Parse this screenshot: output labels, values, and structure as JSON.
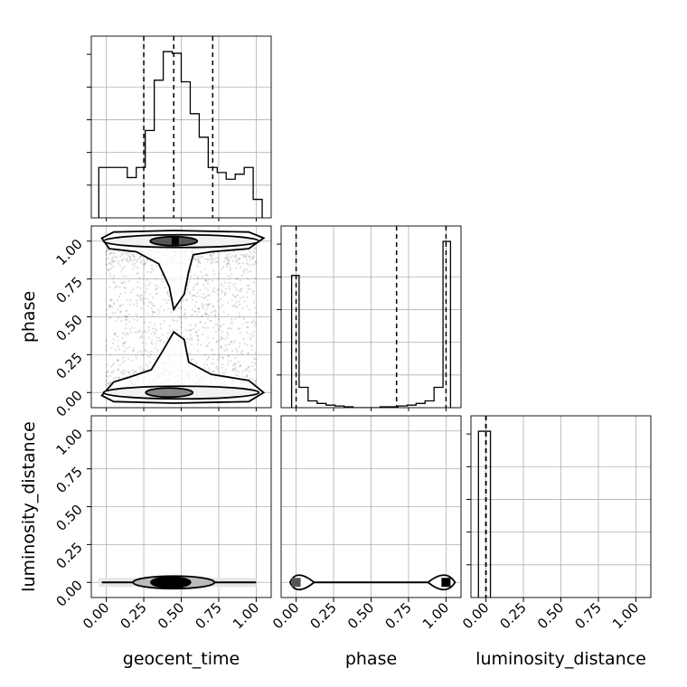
{
  "chart_data": {
    "type": "corner",
    "parameters": [
      "geocent_time",
      "phase",
      "luminosity_distance"
    ],
    "axis_labels": {
      "geocent_time": "geocent_time",
      "phase": "phase",
      "luminosity_distance": "luminosity_distance"
    },
    "ticks": {
      "geocent_time": [
        "0.00",
        "0.25",
        "0.50",
        "0.75",
        "1.00"
      ],
      "phase": [
        "0.00",
        "0.25",
        "0.50",
        "0.75",
        "1.00"
      ],
      "luminosity_distance": [
        "0.00",
        "0.25",
        "0.50",
        "0.75",
        "1.00"
      ]
    },
    "tick_values": [
      0,
      0.25,
      0.5,
      0.75,
      1.0
    ],
    "xlim": [
      -0.1,
      1.1
    ],
    "grid": true,
    "diagonal": [
      {
        "parameter": "geocent_time",
        "bins": [
          -0.05,
          0.02,
          0.08,
          0.14,
          0.2,
          0.26,
          0.32,
          0.38,
          0.44,
          0.5,
          0.56,
          0.62,
          0.68,
          0.74,
          0.8,
          0.86,
          0.92,
          0.98,
          1.04
        ],
        "counts": [
          0.3,
          0.3,
          0.3,
          0.24,
          0.3,
          0.52,
          0.82,
          0.99,
          0.98,
          0.81,
          0.62,
          0.48,
          0.3,
          0.27,
          0.23,
          0.26,
          0.3,
          0.11
        ],
        "quantiles": [
          0.25,
          0.45,
          0.71
        ]
      },
      {
        "parameter": "phase",
        "bins": [
          -0.03,
          0.02,
          0.08,
          0.14,
          0.2,
          0.26,
          0.32,
          0.38,
          0.44,
          0.5,
          0.56,
          0.62,
          0.68,
          0.74,
          0.8,
          0.86,
          0.92,
          0.98,
          1.03
        ],
        "counts": [
          0.78,
          0.12,
          0.04,
          0.025,
          0.015,
          0.01,
          0.005,
          0.0,
          0.0,
          0.0,
          0.005,
          0.005,
          0.01,
          0.015,
          0.025,
          0.04,
          0.12,
          0.98
        ],
        "quantiles": [
          0.0,
          0.67,
          1.0
        ]
      },
      {
        "parameter": "luminosity_distance",
        "bins": [
          -0.05,
          0.0,
          0.03
        ],
        "counts": [
          1.0,
          1.0
        ],
        "quantiles": [
          0.0,
          0.0,
          0.0
        ]
      }
    ],
    "panels_2d": [
      {
        "x": "geocent_time",
        "y": "phase",
        "scatter": "uniform",
        "mode_regions": [
          [
            0.46,
            1.0
          ],
          [
            0.42,
            0.0
          ]
        ]
      },
      {
        "x": "geocent_time",
        "y": "luminosity_distance",
        "scatter": "none",
        "mode_regions": [
          [
            0.43,
            0.0
          ]
        ]
      },
      {
        "x": "phase",
        "y": "luminosity_distance",
        "scatter": "none",
        "mode_regions": [
          [
            0.0,
            0.0
          ],
          [
            1.0,
            0.0
          ]
        ]
      }
    ]
  }
}
